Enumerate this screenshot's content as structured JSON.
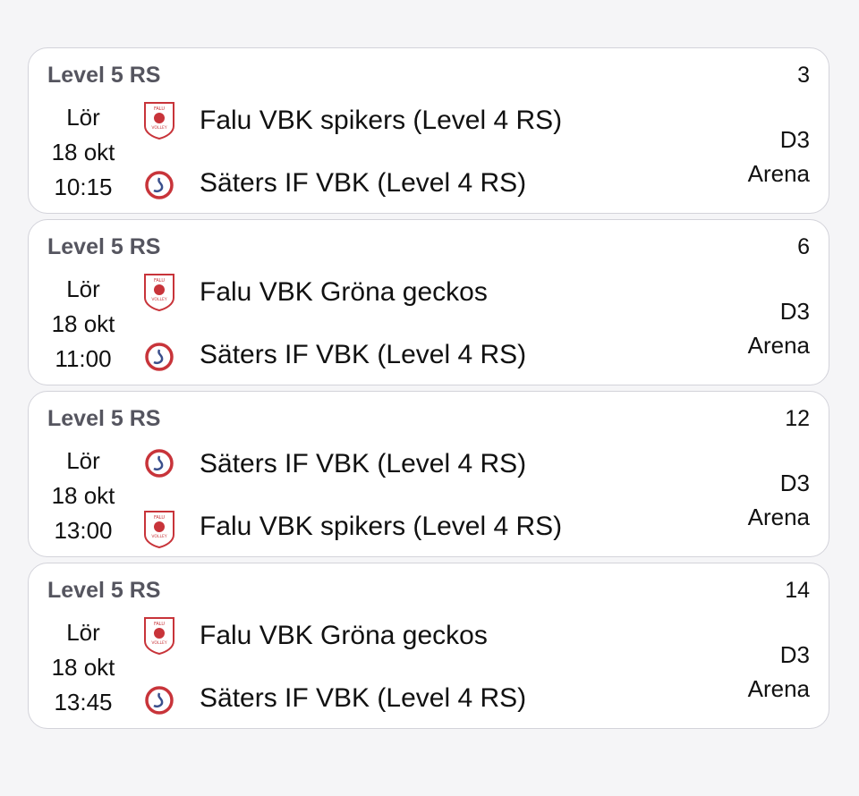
{
  "matches": [
    {
      "level": "Level 5 RS",
      "number": "3",
      "day": "Lör",
      "date": "18 okt",
      "time": "10:15",
      "home": {
        "name": "Falu VBK spikers (Level 4 RS)",
        "logo": "falu-volley-logo"
      },
      "away": {
        "name": "Säters IF VBK (Level 4 RS)",
        "logo": "saters-if-logo"
      },
      "venue_line1": "D3",
      "venue_line2": "Arena"
    },
    {
      "level": "Level 5 RS",
      "number": "6",
      "day": "Lör",
      "date": "18 okt",
      "time": "11:00",
      "home": {
        "name": "Falu VBK Gröna geckos",
        "logo": "falu-volley-logo"
      },
      "away": {
        "name": "Säters IF VBK (Level 4 RS)",
        "logo": "saters-if-logo"
      },
      "venue_line1": "D3",
      "venue_line2": "Arena"
    },
    {
      "level": "Level 5 RS",
      "number": "12",
      "day": "Lör",
      "date": "18 okt",
      "time": "13:00",
      "home": {
        "name": "Säters IF VBK (Level 4 RS)",
        "logo": "saters-if-logo"
      },
      "away": {
        "name": "Falu VBK spikers (Level 4 RS)",
        "logo": "falu-volley-logo"
      },
      "venue_line1": "D3",
      "venue_line2": "Arena"
    },
    {
      "level": "Level 5 RS",
      "number": "14",
      "day": "Lör",
      "date": "18 okt",
      "time": "13:45",
      "home": {
        "name": "Falu VBK Gröna geckos",
        "logo": "falu-volley-logo"
      },
      "away": {
        "name": "Säters IF VBK (Level 4 RS)",
        "logo": "saters-if-logo"
      },
      "venue_line1": "D3",
      "venue_line2": "Arena"
    }
  ],
  "colors": {
    "level_text": "#55555f",
    "card_border": "#d3d3da",
    "logo_red": "#c8343a",
    "logo_blue": "#3a4f8c"
  }
}
